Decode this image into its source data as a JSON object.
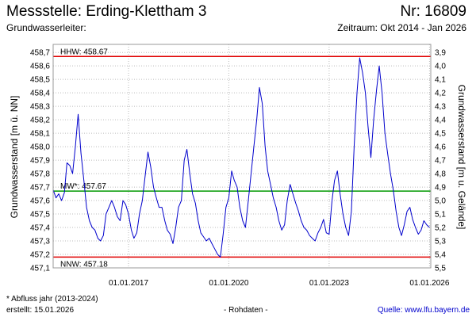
{
  "header": {
    "title": "Messstelle: Erding-Klettham 3",
    "number": "Nr: 16809",
    "aquifer_label": "Grundwasserleiter:",
    "period": "Zeitraum: Okt 2014 - Jan 2026"
  },
  "footer": {
    "footnote": "* Abfluss jahr (2013-2024)",
    "created": "erstellt:  15.01.2026",
    "raw_data": "- Rohdaten -",
    "source": "Quelle: www.lfu.bayern.de"
  },
  "colors": {
    "series": "#0000cc",
    "hhw": "#e00000",
    "nnw": "#e00000",
    "mw": "#009900",
    "grid": "#bbbbbb",
    "plot_border": "#999999"
  },
  "chart_data": {
    "type": "line",
    "ylabel": "Grundwasserstand [m ü. NN]",
    "y2label": "Grundwasserstand [m u. Gelände]",
    "ylim": [
      457.1,
      458.76
    ],
    "y2_ticks": [
      "3,9",
      "4,0",
      "4,1",
      "4,2",
      "4,3",
      "4,4",
      "4,5",
      "4,6",
      "4,7",
      "4,8",
      "4,9",
      "5,0",
      "5,1",
      "5,2",
      "5,3",
      "5,4",
      "5,5"
    ],
    "y2_reference": {
      "ground_level_m": 462.6
    },
    "y_ticks": [
      "458,7",
      "458,6",
      "458,5",
      "458,4",
      "458,3",
      "458,2",
      "458,1",
      "458,0",
      "457,9",
      "457,8",
      "457,7",
      "457,6",
      "457,5",
      "457,4",
      "457,3",
      "457,2",
      "457,1"
    ],
    "x_ticks": [
      {
        "date": "2017-01-01",
        "label": "01.01.2017"
      },
      {
        "date": "2020-01-01",
        "label": "01.01.2020"
      },
      {
        "date": "2023-01-01",
        "label": "01.01.2023"
      },
      {
        "date": "2026-01-01",
        "label": "01.01.2026"
      }
    ],
    "xlim": [
      "2014-10-01",
      "2026-01-15"
    ],
    "grid": true,
    "reference_lines": [
      {
        "key": "hhw",
        "label": "HHW: 458.67",
        "value": 458.67
      },
      {
        "key": "mw",
        "label": "MW*: 457.67",
        "value": 457.67
      },
      {
        "key": "nnw",
        "label": "NNW: 457.18",
        "value": 457.18
      }
    ],
    "series": [
      {
        "x": [
          "2014-10-01",
          "2014-11-01",
          "2014-12-01",
          "2015-01-01",
          "2015-02-01",
          "2015-03-01",
          "2015-04-01",
          "2015-05-01",
          "2015-06-01",
          "2015-07-01",
          "2015-08-01",
          "2015-09-01",
          "2015-10-01",
          "2015-11-01",
          "2015-12-01",
          "2016-01-01",
          "2016-02-01",
          "2016-03-01",
          "2016-04-01",
          "2016-05-01",
          "2016-06-01",
          "2016-07-01",
          "2016-08-01",
          "2016-09-01",
          "2016-10-01",
          "2016-11-01",
          "2016-12-01",
          "2017-01-01",
          "2017-02-01",
          "2017-03-01",
          "2017-04-01",
          "2017-05-01",
          "2017-06-01",
          "2017-07-01",
          "2017-08-01",
          "2017-09-01",
          "2017-10-01",
          "2017-11-01",
          "2017-12-01",
          "2018-01-01",
          "2018-02-01",
          "2018-03-01",
          "2018-04-01",
          "2018-05-01",
          "2018-06-01",
          "2018-07-01",
          "2018-08-01",
          "2018-09-01",
          "2018-10-01",
          "2018-11-01",
          "2018-12-01",
          "2019-01-01",
          "2019-02-01",
          "2019-03-01",
          "2019-04-01",
          "2019-05-01",
          "2019-06-01",
          "2019-07-01",
          "2019-08-01",
          "2019-09-01",
          "2019-10-01",
          "2019-11-01",
          "2019-12-01",
          "2020-01-01",
          "2020-02-01",
          "2020-03-01",
          "2020-04-01",
          "2020-05-01",
          "2020-06-01",
          "2020-07-01",
          "2020-08-01",
          "2020-09-01",
          "2020-10-01",
          "2020-11-01",
          "2020-12-01",
          "2021-01-01",
          "2021-02-01",
          "2021-03-01",
          "2021-04-01",
          "2021-05-01",
          "2021-06-01",
          "2021-07-01",
          "2021-08-01",
          "2021-09-01",
          "2021-10-01",
          "2021-11-01",
          "2021-12-01",
          "2022-01-01",
          "2022-02-01",
          "2022-03-01",
          "2022-04-01",
          "2022-05-01",
          "2022-06-01",
          "2022-07-01",
          "2022-08-01",
          "2022-09-01",
          "2022-10-01",
          "2022-11-01",
          "2022-12-01",
          "2023-01-01",
          "2023-02-01",
          "2023-03-01",
          "2023-04-01",
          "2023-05-01",
          "2023-06-01",
          "2023-07-01",
          "2023-08-01",
          "2023-09-01",
          "2023-10-01",
          "2023-11-01",
          "2023-12-01",
          "2024-01-01",
          "2024-02-01",
          "2024-03-01",
          "2024-04-01",
          "2024-05-01",
          "2024-06-01",
          "2024-07-01",
          "2024-08-01",
          "2024-09-01",
          "2024-10-01",
          "2024-11-01",
          "2024-12-01",
          "2025-01-01",
          "2025-02-01",
          "2025-03-01",
          "2025-04-01",
          "2025-05-01",
          "2025-06-01",
          "2025-07-01",
          "2025-08-01",
          "2025-09-01",
          "2025-10-01",
          "2025-11-01",
          "2025-12-01",
          "2026-01-01"
        ],
        "y": [
          457.68,
          457.62,
          457.65,
          457.6,
          457.66,
          457.88,
          457.86,
          457.8,
          458.0,
          458.24,
          457.95,
          457.75,
          457.55,
          457.45,
          457.4,
          457.38,
          457.32,
          457.3,
          457.34,
          457.5,
          457.55,
          457.6,
          457.55,
          457.48,
          457.45,
          457.6,
          457.57,
          457.5,
          457.38,
          457.32,
          457.36,
          457.5,
          457.6,
          457.78,
          457.96,
          457.85,
          457.7,
          457.62,
          457.55,
          457.55,
          457.45,
          457.38,
          457.35,
          457.28,
          457.4,
          457.55,
          457.6,
          457.9,
          457.98,
          457.8,
          457.65,
          457.58,
          457.45,
          457.36,
          457.33,
          457.3,
          457.32,
          457.28,
          457.24,
          457.2,
          457.18,
          457.35,
          457.55,
          457.62,
          457.82,
          457.75,
          457.7,
          457.55,
          457.45,
          457.4,
          457.6,
          457.8,
          458.0,
          458.2,
          458.44,
          458.32,
          458.0,
          457.82,
          457.72,
          457.62,
          457.55,
          457.45,
          457.38,
          457.42,
          457.6,
          457.72,
          457.65,
          457.58,
          457.52,
          457.45,
          457.4,
          457.38,
          457.34,
          457.32,
          457.3,
          457.36,
          457.4,
          457.46,
          457.36,
          457.35,
          457.6,
          457.75,
          457.82,
          457.65,
          457.5,
          457.4,
          457.34,
          457.52,
          458.0,
          458.4,
          458.66,
          458.55,
          458.4,
          458.15,
          457.92,
          458.2,
          458.42,
          458.6,
          458.4,
          458.1,
          457.95,
          457.8,
          457.68,
          457.52,
          457.4,
          457.34,
          457.42,
          457.52,
          457.55,
          457.46,
          457.4,
          457.35,
          457.38,
          457.45,
          457.42,
          457.4
        ]
      }
    ]
  }
}
